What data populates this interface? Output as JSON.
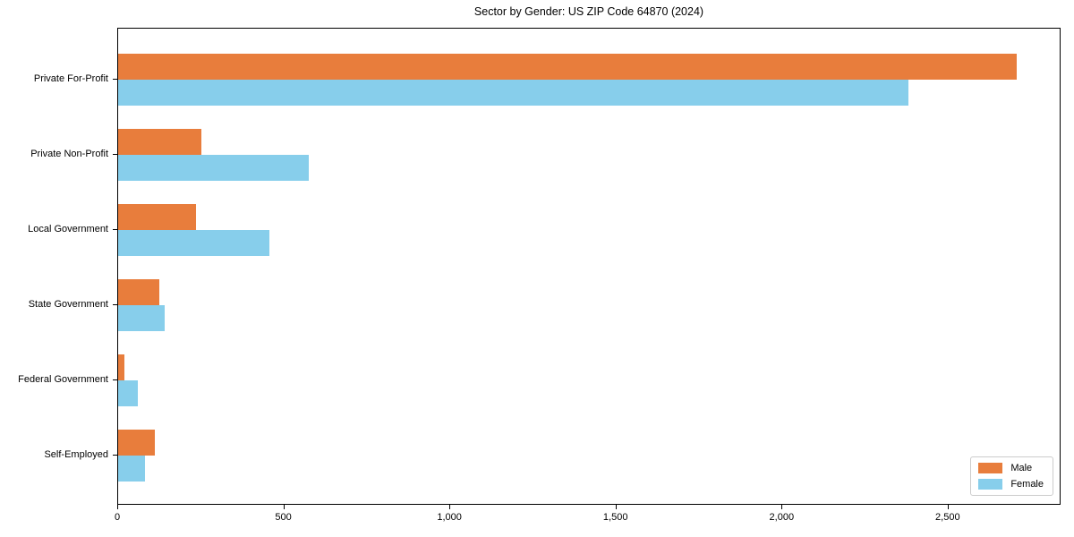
{
  "chart_data": {
    "type": "bar",
    "orientation": "horizontal",
    "title": "Sector by Gender: US ZIP Code 64870 (2024)",
    "categories": [
      "Private For-Profit",
      "Private Non-Profit",
      "Local Government",
      "State Government",
      "Federal Government",
      "Self-Employed"
    ],
    "series": [
      {
        "name": "Male",
        "color": "#E87D3C",
        "values": [
          2705,
          250,
          235,
          125,
          20,
          110
        ]
      },
      {
        "name": "Female",
        "color": "#87CEEB",
        "values": [
          2380,
          575,
          455,
          140,
          60,
          80
        ]
      }
    ],
    "xlabel": "",
    "ylabel": "",
    "xlim": [
      0,
      2840
    ],
    "x_ticks": [
      {
        "value": 0,
        "label": "0"
      },
      {
        "value": 500,
        "label": "500"
      },
      {
        "value": 1000,
        "label": "1,000"
      },
      {
        "value": 1500,
        "label": "1,500"
      },
      {
        "value": 2000,
        "label": "2,000"
      },
      {
        "value": 2500,
        "label": "2,500"
      }
    ],
    "grid": false,
    "legend_position": "lower right"
  },
  "colors": {
    "male_bar": "#E87D3C",
    "female_bar": "#87CEEB",
    "axis": "#000000",
    "legend_border": "#CCCCCC",
    "background": "#FFFFFF"
  }
}
